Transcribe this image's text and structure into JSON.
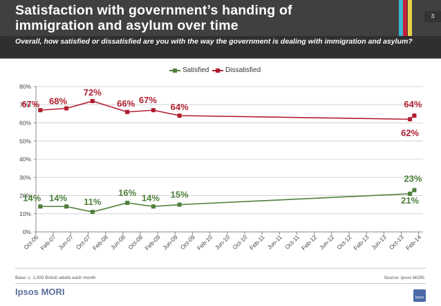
{
  "header": {
    "title_line1": "Satisfaction with government’s handing of",
    "title_line2": "immigration and asylum over time",
    "subtitle": "Overall, how satisfied or dissatisfied are you with the way the government is dealing with immigration and asylum?",
    "page_number": "3",
    "accent_colors": [
      "#3cb4d2",
      "#c41e3a",
      "#e8d14a"
    ]
  },
  "footer": {
    "base": "Base: c. 1,000 British adults each month",
    "source": "Source: Ipsos MORI",
    "brand": "Ipsos MORI",
    "logo_text": "Ipsos"
  },
  "chart_data": {
    "type": "line",
    "title": "",
    "xlabel": "",
    "ylabel": "",
    "ylim": [
      0,
      80
    ],
    "y_ticks": [
      "0%",
      "10%",
      "20%",
      "30%",
      "40%",
      "50%",
      "60%",
      "70%",
      "80%"
    ],
    "x_tick_labels": [
      "Oct-06",
      "Feb-07",
      "Jun-07",
      "Oct-07",
      "Feb-08",
      "Jun-08",
      "Oct-08",
      "Feb-09",
      "Jun-09",
      "Oct-09",
      "Feb-10",
      "Jun-10",
      "Oct-10",
      "Feb-11",
      "Jun-11",
      "Oct-11",
      "Feb-12",
      "Jun-12",
      "Oct-12",
      "Feb-13",
      "Jun-13",
      "Oct-13",
      "Feb-14"
    ],
    "x_period_months": [
      0,
      89
    ],
    "legend": {
      "position": "top",
      "entries": [
        "Satisfied",
        "Dissatisfied"
      ]
    },
    "grid": true,
    "series": [
      {
        "name": "Satisfied",
        "color": "#4e7f3a",
        "points": [
          {
            "month_index": 1,
            "value": 14,
            "label": "14%"
          },
          {
            "month_index": 7,
            "value": 14,
            "label": "14%"
          },
          {
            "month_index": 13,
            "value": 11,
            "label": "11%"
          },
          {
            "month_index": 21,
            "value": 16,
            "label": "16%"
          },
          {
            "month_index": 27,
            "value": 14,
            "label": "14%"
          },
          {
            "month_index": 33,
            "value": 15,
            "label": "15%"
          },
          {
            "month_index": 86,
            "value": 21,
            "label": "21%"
          },
          {
            "month_index": 87,
            "value": 23,
            "label": "23%"
          }
        ]
      },
      {
        "name": "Dissatisfied",
        "color": "#b01e30",
        "points": [
          {
            "month_index": 1,
            "value": 67,
            "label": "67%"
          },
          {
            "month_index": 7,
            "value": 68,
            "label": "68%"
          },
          {
            "month_index": 13,
            "value": 72,
            "label": "72%"
          },
          {
            "month_index": 21,
            "value": 66,
            "label": "66%"
          },
          {
            "month_index": 27,
            "value": 67,
            "label": "67%"
          },
          {
            "month_index": 33,
            "value": 64,
            "label": "64%"
          },
          {
            "month_index": 86,
            "value": 62,
            "label": "62%"
          },
          {
            "month_index": 87,
            "value": 64,
            "label": "64%"
          }
        ]
      }
    ]
  }
}
